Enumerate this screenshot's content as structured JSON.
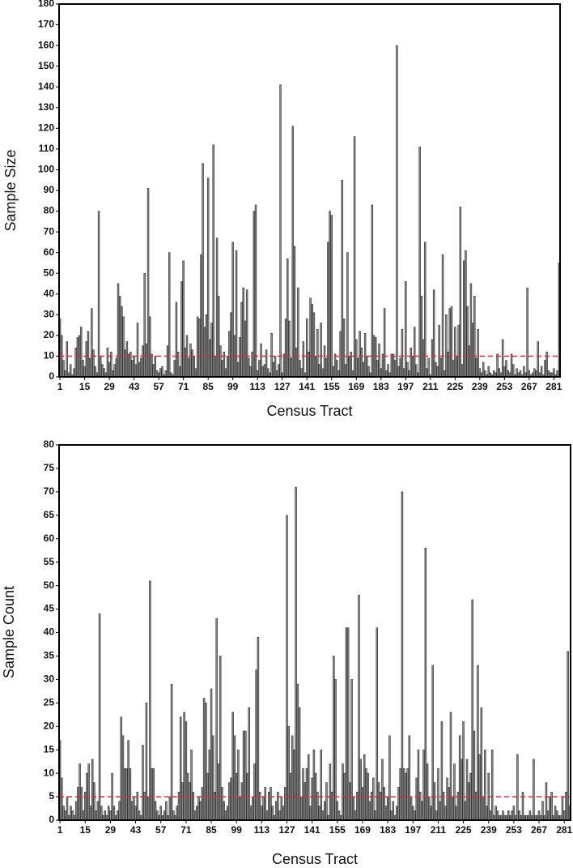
{
  "chart_data": [
    {
      "type": "bar",
      "y_label": "Sample Size",
      "x_label": "Census Tract",
      "color": "#8c8c8c",
      "reference_line": 10,
      "reference_color": "#e8262a",
      "ylim": [
        0,
        180
      ],
      "yticks": [
        0,
        10,
        20,
        30,
        40,
        50,
        60,
        70,
        80,
        90,
        100,
        110,
        120,
        130,
        140,
        150,
        160,
        170,
        180
      ],
      "categories": [
        "1",
        null,
        null,
        null,
        null,
        null,
        null,
        null,
        null,
        null,
        null,
        null,
        null,
        null,
        "15",
        null,
        null,
        null,
        null,
        null,
        null,
        null,
        null,
        null,
        null,
        null,
        null,
        null,
        "29",
        null,
        null,
        null,
        null,
        null,
        null,
        null,
        null,
        null,
        null,
        null,
        null,
        null,
        "43",
        null,
        null,
        null,
        null,
        null,
        null,
        null,
        null,
        null,
        null,
        null,
        null,
        null,
        "57",
        null,
        null,
        null,
        null,
        null,
        null,
        null,
        null,
        null,
        null,
        null,
        null,
        null,
        "71",
        null,
        null,
        null,
        null,
        null,
        null,
        null,
        null,
        null,
        null,
        null,
        null,
        null,
        "85",
        null,
        null,
        null,
        null,
        null,
        null,
        null,
        null,
        null,
        null,
        null,
        null,
        null,
        "99",
        null,
        null,
        null,
        null,
        null,
        null,
        null,
        null,
        null,
        null,
        null,
        null,
        null,
        "113",
        null,
        null,
        null,
        null,
        null,
        null,
        null,
        null,
        null,
        null,
        null,
        null,
        null,
        "127",
        null,
        null,
        null,
        null,
        null,
        null,
        null,
        null,
        null,
        null,
        null,
        null,
        null,
        "141",
        null,
        null,
        null,
        null,
        null,
        null,
        null,
        null,
        null,
        null,
        null,
        null,
        null,
        "155",
        null,
        null,
        null,
        null,
        null,
        null,
        null,
        null,
        null,
        null,
        null,
        null,
        null,
        "169",
        null,
        null,
        null,
        null,
        null,
        null,
        null,
        null,
        null,
        null,
        null,
        null,
        null,
        "183",
        null,
        null,
        null,
        null,
        null,
        null,
        null,
        null,
        null,
        null,
        null,
        null,
        null,
        "197",
        null,
        null,
        null,
        null,
        null,
        null,
        null,
        null,
        null,
        null,
        null,
        null,
        null,
        "211",
        null,
        null,
        null,
        null,
        null,
        null,
        null,
        null,
        null,
        null,
        null,
        null,
        null,
        "225",
        null,
        null,
        null,
        null,
        null,
        null,
        null,
        null,
        null,
        null,
        null,
        null,
        null,
        "239",
        null,
        null,
        null,
        null,
        null,
        null,
        null,
        null,
        null,
        null,
        null,
        null,
        null,
        "253",
        null,
        null,
        null,
        null,
        null,
        null,
        null,
        null,
        null,
        null,
        null,
        null,
        null,
        "267",
        null,
        null,
        null,
        null,
        null,
        null,
        null,
        null,
        null,
        null,
        null,
        null,
        null,
        "281",
        null,
        null,
        null
      ],
      "values": [
        28,
        20,
        8,
        3,
        17,
        2,
        6,
        1,
        4,
        14,
        19,
        20,
        24,
        8,
        5,
        17,
        22,
        9,
        33,
        13,
        5,
        2,
        80,
        10,
        6,
        4,
        2,
        14,
        7,
        12,
        3,
        6,
        9,
        45,
        39,
        34,
        29,
        13,
        17,
        11,
        12,
        8,
        10,
        6,
        26,
        7,
        9,
        15,
        50,
        16,
        91,
        29,
        11,
        6,
        10,
        3,
        2,
        4,
        5,
        1,
        3,
        15,
        60,
        2,
        1,
        8,
        36,
        12,
        5,
        46,
        56,
        14,
        20,
        9,
        16,
        13,
        10,
        4,
        29,
        28,
        59,
        103,
        24,
        30,
        96,
        18,
        26,
        112,
        10,
        67,
        39,
        15,
        8,
        12,
        4,
        10,
        22,
        31,
        65,
        20,
        61,
        7,
        19,
        36,
        43,
        27,
        42,
        9,
        5,
        12,
        80,
        83,
        3,
        8,
        16,
        5,
        6,
        13,
        4,
        2,
        21,
        7,
        10,
        3,
        6,
        141,
        2,
        11,
        28,
        57,
        27,
        9,
        121,
        63,
        14,
        43,
        8,
        4,
        17,
        2,
        28,
        12,
        38,
        35,
        31,
        10,
        23,
        6,
        26,
        4,
        15,
        9,
        65,
        80,
        78,
        5,
        11,
        8,
        3,
        22,
        95,
        28,
        6,
        60,
        10,
        12,
        3,
        116,
        18,
        9,
        22,
        14,
        7,
        21,
        10,
        5,
        2,
        83,
        20,
        19,
        8,
        16,
        4,
        11,
        33,
        3,
        6,
        2,
        11,
        11,
        8,
        160,
        5,
        9,
        23,
        4,
        46,
        7,
        3,
        14,
        10,
        24,
        6,
        2,
        111,
        39,
        18,
        65,
        4,
        9,
        1,
        18,
        42,
        7,
        5,
        25,
        9,
        59,
        3,
        30,
        12,
        33,
        34,
        8,
        24,
        10,
        25,
        82,
        6,
        56,
        61,
        34,
        15,
        45,
        26,
        39,
        9,
        23,
        4,
        2,
        7,
        3,
        1,
        5,
        2,
        1,
        3,
        2,
        11,
        4,
        2,
        18,
        5,
        8,
        3,
        2,
        11,
        6,
        1,
        4,
        2,
        3,
        1,
        5,
        2,
        43,
        3,
        1,
        2,
        4,
        3,
        17,
        2,
        5,
        1,
        8,
        12,
        3,
        2,
        2,
        4,
        1,
        3,
        55
      ]
    },
    {
      "type": "bar",
      "y_label": "Sample Count",
      "x_label": "Census Tract",
      "color": "#8c8c8c",
      "reference_line": 5,
      "reference_color": "#e8262a",
      "ylim": [
        0,
        80
      ],
      "yticks": [
        0,
        5,
        10,
        15,
        20,
        25,
        30,
        35,
        40,
        45,
        50,
        55,
        60,
        65,
        70,
        75,
        80
      ],
      "categories": [
        "1",
        null,
        null,
        null,
        null,
        null,
        null,
        null,
        null,
        null,
        null,
        null,
        null,
        null,
        "15",
        null,
        null,
        null,
        null,
        null,
        null,
        null,
        null,
        null,
        null,
        null,
        null,
        null,
        "29",
        null,
        null,
        null,
        null,
        null,
        null,
        null,
        null,
        null,
        null,
        null,
        null,
        null,
        "43",
        null,
        null,
        null,
        null,
        null,
        null,
        null,
        null,
        null,
        null,
        null,
        null,
        null,
        "57",
        null,
        null,
        null,
        null,
        null,
        null,
        null,
        null,
        null,
        null,
        null,
        null,
        null,
        "71",
        null,
        null,
        null,
        null,
        null,
        null,
        null,
        null,
        null,
        null,
        null,
        null,
        null,
        "85",
        null,
        null,
        null,
        null,
        null,
        null,
        null,
        null,
        null,
        null,
        null,
        null,
        null,
        "99",
        null,
        null,
        null,
        null,
        null,
        null,
        null,
        null,
        null,
        null,
        null,
        null,
        null,
        "113",
        null,
        null,
        null,
        null,
        null,
        null,
        null,
        null,
        null,
        null,
        null,
        null,
        null,
        "127",
        null,
        null,
        null,
        null,
        null,
        null,
        null,
        null,
        null,
        null,
        null,
        null,
        null,
        "141",
        null,
        null,
        null,
        null,
        null,
        null,
        null,
        null,
        null,
        null,
        null,
        null,
        null,
        "155",
        null,
        null,
        null,
        null,
        null,
        null,
        null,
        null,
        null,
        null,
        null,
        null,
        null,
        "169",
        null,
        null,
        null,
        null,
        null,
        null,
        null,
        null,
        null,
        null,
        null,
        null,
        null,
        "183",
        null,
        null,
        null,
        null,
        null,
        null,
        null,
        null,
        null,
        null,
        null,
        null,
        null,
        "197",
        null,
        null,
        null,
        null,
        null,
        null,
        null,
        null,
        null,
        null,
        null,
        null,
        null,
        "211",
        null,
        null,
        null,
        null,
        null,
        null,
        null,
        null,
        null,
        null,
        null,
        null,
        null,
        "225",
        null,
        null,
        null,
        null,
        null,
        null,
        null,
        null,
        null,
        null,
        null,
        null,
        null,
        "239",
        null,
        null,
        null,
        null,
        null,
        null,
        null,
        null,
        null,
        null,
        null,
        null,
        null,
        "253",
        null,
        null,
        null,
        null,
        null,
        null,
        null,
        null,
        null,
        null,
        null,
        null,
        null,
        "267",
        null,
        null,
        null,
        null,
        null,
        null,
        null,
        null,
        null,
        null,
        null,
        null,
        null,
        "281",
        null,
        null,
        null
      ],
      "values": [
        17,
        9,
        3,
        2,
        5,
        1,
        3,
        2,
        1,
        4,
        7,
        12,
        7,
        2,
        6,
        10,
        12,
        3,
        13,
        8,
        2,
        4,
        44,
        3,
        1,
        2,
        1,
        3,
        2,
        10,
        3,
        1,
        2,
        4,
        22,
        18,
        11,
        11,
        17,
        11,
        4,
        5,
        3,
        6,
        2,
        1,
        16,
        6,
        25,
        5,
        51,
        11,
        11,
        4,
        2,
        1,
        3,
        1,
        2,
        4,
        1,
        5,
        29,
        2,
        1,
        3,
        6,
        22,
        8,
        23,
        21,
        10,
        8,
        15,
        6,
        2,
        3,
        5,
        4,
        7,
        26,
        25,
        10,
        15,
        28,
        18,
        6,
        43,
        12,
        35,
        7,
        4,
        2,
        3,
        8,
        9,
        23,
        18,
        10,
        15,
        5,
        8,
        19,
        19,
        10,
        24,
        3,
        5,
        12,
        32,
        39,
        6,
        3,
        5,
        7,
        2,
        6,
        7,
        3,
        1,
        4,
        6,
        2,
        5,
        3,
        7,
        65,
        20,
        10,
        18,
        15,
        71,
        29,
        24,
        5,
        11,
        8,
        11,
        14,
        3,
        9,
        15,
        10,
        6,
        3,
        15,
        2,
        4,
        8,
        1,
        12,
        6,
        35,
        30,
        4,
        2,
        1,
        12,
        10,
        41,
        41,
        8,
        30,
        5,
        2,
        6,
        48,
        13,
        7,
        14,
        11,
        10,
        4,
        6,
        9,
        2,
        41,
        8,
        6,
        13,
        7,
        3,
        5,
        18,
        2,
        4,
        1,
        3,
        7,
        11,
        70,
        11,
        10,
        11,
        18,
        5,
        3,
        2,
        9,
        15,
        6,
        4,
        15,
        58,
        12,
        5,
        3,
        33,
        8,
        2,
        11,
        4,
        21,
        6,
        3,
        9,
        7,
        23,
        5,
        12,
        3,
        6,
        18,
        13,
        21,
        4,
        13,
        8,
        10,
        47,
        19,
        6,
        33,
        14,
        24,
        5,
        15,
        3,
        10,
        2,
        15,
        1,
        3,
        2,
        1,
        1,
        2,
        1,
        1,
        2,
        1,
        2,
        3,
        1,
        14,
        2,
        1,
        6,
        1,
        1,
        1,
        2,
        1,
        13,
        1,
        1,
        2,
        1,
        4,
        1,
        8,
        2,
        5,
        6,
        1,
        3,
        2,
        1,
        1,
        5,
        2,
        6,
        36,
        3
      ]
    }
  ]
}
